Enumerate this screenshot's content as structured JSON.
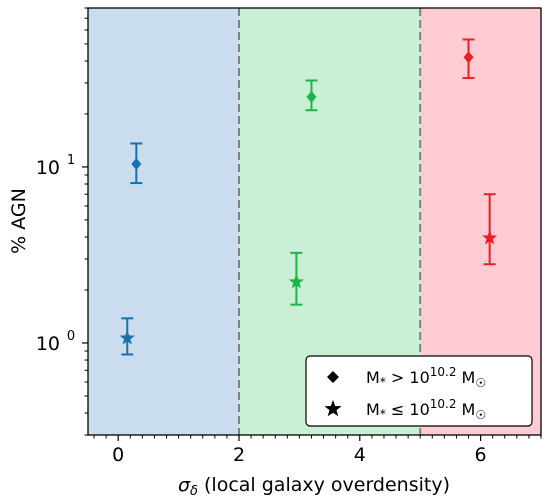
{
  "chart_data": {
    "type": "scatter",
    "title": "",
    "xlabel_symbol": "σ",
    "xlabel_subscript": "δ",
    "xlabel_rest": " (local galaxy overdensity)",
    "ylabel": "% AGN",
    "xlim": [
      -0.5,
      7.0
    ],
    "ylim": [
      0.3,
      80
    ],
    "yscale": "log",
    "x_ticks": [
      0,
      2,
      4,
      6
    ],
    "y_ticks": [
      {
        "value": 1,
        "mantissa": "10",
        "exponent": "0"
      },
      {
        "value": 10,
        "mantissa": "10",
        "exponent": "1"
      }
    ],
    "grid": false,
    "legend_position": "lower right",
    "regions": [
      {
        "x_range": [
          -0.5,
          2.0
        ],
        "color": "#c9ddef"
      },
      {
        "x_range": [
          2.0,
          5.0
        ],
        "color": "#c9f0d5"
      },
      {
        "x_range": [
          5.0,
          7.0
        ],
        "color": "#ffccd3"
      }
    ],
    "boundaries": [
      2.0,
      5.0
    ],
    "series": [
      {
        "marker": "diamond",
        "legend_text": "M* > 10^10.2 M☉",
        "points": [
          {
            "x": 0.3,
            "y": 10.4,
            "yerr_low": 8.1,
            "yerr_high": 13.6,
            "color": "#1a6faf"
          },
          {
            "x": 3.2,
            "y": 25.0,
            "yerr_low": 21.0,
            "yerr_high": 31.0,
            "color": "#1eb34a"
          },
          {
            "x": 5.8,
            "y": 42.0,
            "yerr_low": 32.0,
            "yerr_high": 53.0,
            "color": "#e8202a"
          }
        ]
      },
      {
        "marker": "star",
        "legend_text": "M* ≤ 10^10.2 M☉",
        "points": [
          {
            "x": 0.15,
            "y": 1.08,
            "yerr_low": 0.86,
            "yerr_high": 1.38,
            "color": "#1a6faf"
          },
          {
            "x": 2.95,
            "y": 2.25,
            "yerr_low": 1.65,
            "yerr_high": 3.25,
            "color": "#1eb34a"
          },
          {
            "x": 6.15,
            "y": 4.0,
            "yerr_low": 2.8,
            "yerr_high": 7.0,
            "color": "#e8202a"
          }
        ]
      }
    ],
    "legend": [
      {
        "marker": "diamond",
        "prefix": "M",
        "subscript": "*",
        "relation": " > 10",
        "exponent": "10.2",
        "unit": " M",
        "unit_sub": "☉"
      },
      {
        "marker": "star",
        "prefix": "M",
        "subscript": "*",
        "relation": "  ≤  10",
        "exponent": "10.2",
        "unit": " M",
        "unit_sub": "☉"
      }
    ]
  }
}
